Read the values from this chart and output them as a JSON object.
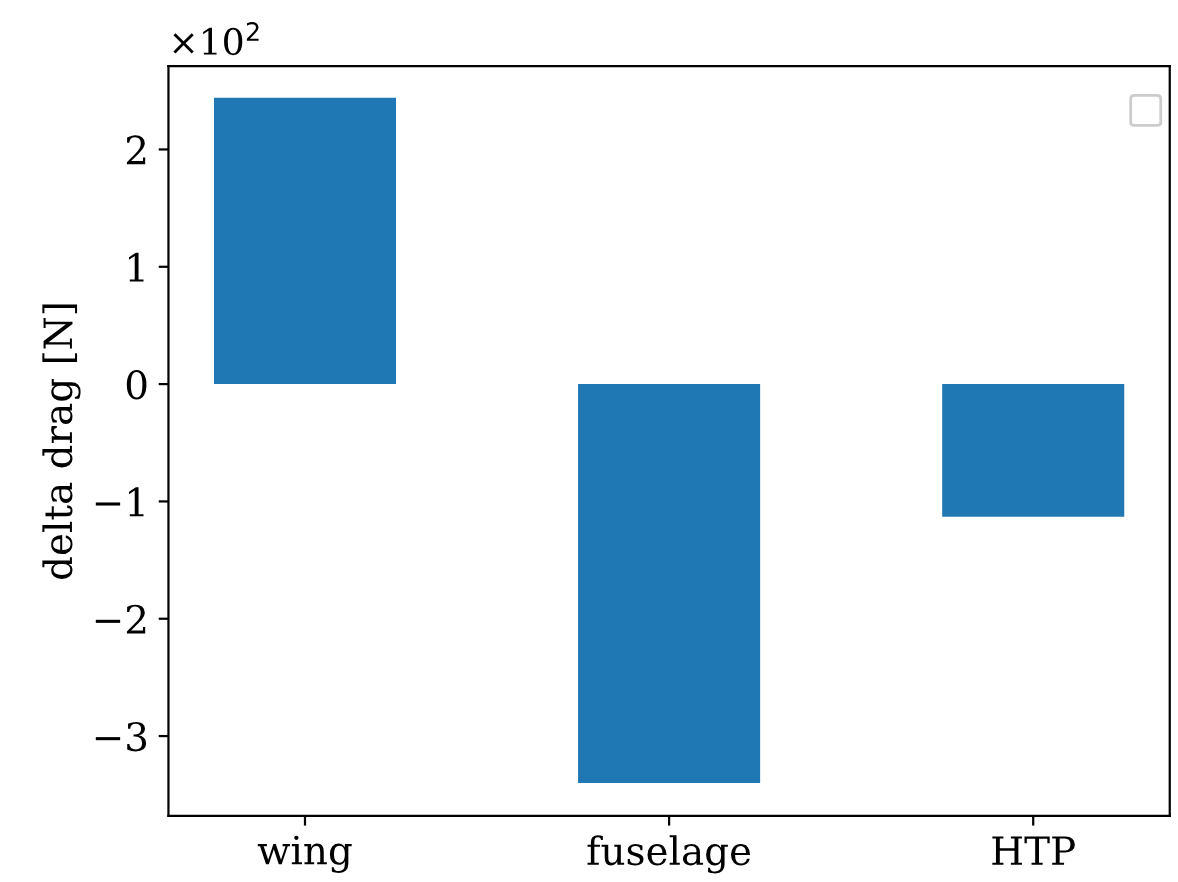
{
  "chart_data": {
    "type": "bar",
    "ylabel": "delta drag [N]",
    "categories": [
      "wing",
      "fuselage",
      "HTP"
    ],
    "values": [
      2.44,
      -3.4,
      -1.13
    ],
    "color": "#1f77b4",
    "ylim": [
      -3.68,
      2.71
    ],
    "yticks": [
      -3,
      -2,
      -1,
      0,
      1,
      2
    ],
    "annotations": [
      "×10$^{2}$"
    ],
    "grid": false
  }
}
